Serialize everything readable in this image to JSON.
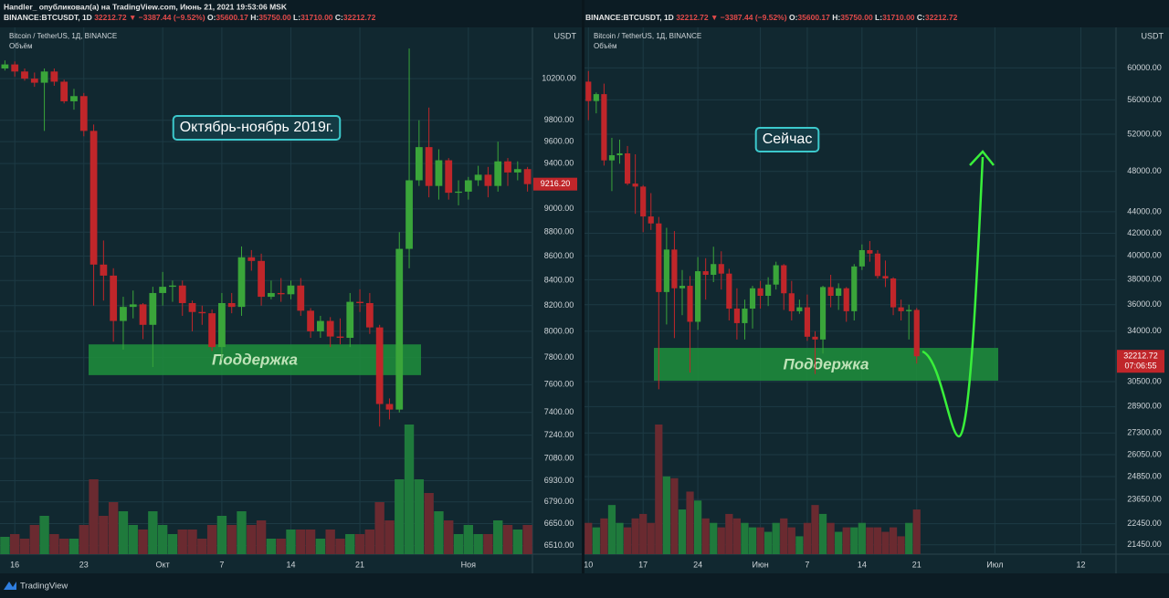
{
  "byline": "Handler_ опубликовал(а) на TradingView.com, Июнь 21, 2021 19:53:06 MSK",
  "footer": "TradingView",
  "ticker": {
    "symbol": "BINANCE:BTCUSDT, 1D",
    "price": "32212.72",
    "change": "▼ −3387.44 (−9.52%)",
    "ohlc": [
      [
        "O:",
        "35600.17"
      ],
      [
        "H:",
        "35750.00"
      ],
      [
        "L:",
        "31710.00"
      ],
      [
        "C:",
        "32212.72"
      ]
    ]
  },
  "chart_data": [
    {
      "type": "candlestick",
      "title": "Bitcoin / TetherUS, 1Д, BINANCE",
      "subtitle": "Объём",
      "axis_unit": "USDT",
      "annotation": "Октябрь-ноябрь 2019г.",
      "support_zone": {
        "label": "Поддержка",
        "low": 7670,
        "high": 7900
      },
      "last_price": {
        "value": 9216.2,
        "label": "9216.20"
      },
      "log_scale": true,
      "grid": true,
      "up_color": "#3aa53a",
      "down_color": "#c0262a",
      "volume_up_color": "#1f7a3c",
      "volume_down_color": "#6a2a30",
      "ylim": [
        6457,
        10715
      ],
      "yticks": [
        {
          "value": 10200,
          "label": "10200.00"
        },
        {
          "value": 9800,
          "label": "9800.00"
        },
        {
          "value": 9600,
          "label": "9600.00"
        },
        {
          "value": 9400,
          "label": "9400.00"
        },
        {
          "value": 9000,
          "label": "9000.00"
        },
        {
          "value": 8800,
          "label": "8800.00"
        },
        {
          "value": 8600,
          "label": "8600.00"
        },
        {
          "value": 8400,
          "label": "8400.00"
        },
        {
          "value": 8200,
          "label": "8200.00"
        },
        {
          "value": 8000,
          "label": "8000.00"
        },
        {
          "value": 7800,
          "label": "7800.00"
        },
        {
          "value": 7600,
          "label": "7600.00"
        },
        {
          "value": 7400,
          "label": "7400.00"
        },
        {
          "value": 7240,
          "label": "7240.00"
        },
        {
          "value": 7080,
          "label": "7080.00"
        },
        {
          "value": 6930,
          "label": "6930.00"
        },
        {
          "value": 6790,
          "label": "6790.00"
        },
        {
          "value": 6650,
          "label": "6650.00"
        },
        {
          "value": 6510,
          "label": "6510.00"
        }
      ],
      "categories": [
        null,
        "16",
        null,
        null,
        null,
        null,
        null,
        null,
        "23",
        null,
        null,
        null,
        null,
        null,
        null,
        null,
        "Окт",
        null,
        null,
        null,
        null,
        null,
        "7",
        null,
        null,
        null,
        null,
        null,
        null,
        "14",
        null,
        null,
        null,
        null,
        null,
        null,
        "21",
        null,
        null,
        null,
        null,
        null,
        null,
        null,
        null,
        null,
        null,
        "Ноя",
        null,
        null,
        null,
        null,
        null,
        null
      ],
      "open": [
        10300,
        10340,
        10270,
        10200,
        10160,
        10270,
        10170,
        9980,
        10030,
        9700,
        8530,
        8440,
        8080,
        8190,
        8210,
        8050,
        8300,
        8350,
        8360,
        8220,
        8150,
        8140,
        7880,
        8220,
        8190,
        8590,
        8560,
        8270,
        8300,
        8290,
        8360,
        8160,
        8000,
        8080,
        7960,
        7950,
        8230,
        8220,
        8030,
        7460,
        7420,
        8660,
        9250,
        9550,
        9200,
        9430,
        9140,
        9150,
        9250,
        9300,
        9200,
        9420,
        9320,
        9350
      ],
      "high": [
        10380,
        10370,
        10300,
        10260,
        10300,
        10300,
        10190,
        10100,
        10060,
        9760,
        8730,
        8500,
        8270,
        8320,
        8220,
        8350,
        8470,
        8400,
        8400,
        8240,
        8200,
        8170,
        8300,
        8300,
        8680,
        8650,
        8620,
        8400,
        8420,
        8400,
        8420,
        8180,
        8120,
        8110,
        8100,
        8300,
        8330,
        8300,
        8050,
        7500,
        8800,
        10500,
        9800,
        9920,
        9530,
        9450,
        9250,
        9280,
        9380,
        9370,
        9600,
        9450,
        9420,
        9370
      ],
      "low": [
        10280,
        10220,
        10180,
        10120,
        9700,
        10130,
        9960,
        9900,
        9650,
        8200,
        8240,
        7920,
        7860,
        8100,
        7940,
        7730,
        8200,
        8230,
        8120,
        8000,
        8050,
        7850,
        7780,
        8140,
        8120,
        8480,
        8200,
        8250,
        8230,
        8250,
        8120,
        7950,
        7950,
        7880,
        7900,
        7880,
        8150,
        7980,
        7300,
        7350,
        7400,
        8500,
        9200,
        9100,
        9080,
        9080,
        9030,
        9080,
        9200,
        9100,
        9150,
        9200,
        9250,
        9150
      ],
      "close": [
        10340,
        10270,
        10200,
        10160,
        10270,
        10170,
        9980,
        10030,
        9700,
        8530,
        8440,
        8080,
        8190,
        8210,
        8050,
        8300,
        8350,
        8360,
        8220,
        8150,
        8140,
        7880,
        8220,
        8190,
        8590,
        8560,
        8270,
        8300,
        8290,
        8360,
        8160,
        8000,
        8080,
        7960,
        7950,
        8230,
        8220,
        8030,
        7460,
        7420,
        8660,
        9250,
        9550,
        9200,
        9430,
        9140,
        9150,
        9250,
        9300,
        9200,
        9420,
        9320,
        9350,
        9216.2
      ],
      "volume": [
        19,
        22,
        17,
        32,
        42,
        22,
        17,
        17,
        32,
        82,
        42,
        57,
        47,
        32,
        27,
        47,
        32,
        22,
        27,
        27,
        17,
        32,
        42,
        32,
        47,
        32,
        37,
        17,
        17,
        27,
        27,
        27,
        17,
        27,
        17,
        22,
        22,
        27,
        57,
        37,
        82,
        142,
        82,
        67,
        47,
        37,
        22,
        32,
        22,
        22,
        37,
        32,
        27,
        32
      ]
    },
    {
      "type": "candlestick",
      "title": "Bitcoin / TetherUS, 1Д, BINANCE",
      "subtitle": "Объём",
      "axis_unit": "USDT",
      "annotation": "Сейчас",
      "support_zone": {
        "label": "Поддержка",
        "low": 30560,
        "high": 32800
      },
      "last_price": {
        "value": 32212.72,
        "label": "32212.72"
      },
      "countdown": "07:06:55",
      "log_scale": true,
      "grid": true,
      "up_color": "#3aa53a",
      "down_color": "#c0262a",
      "volume_up_color": "#1f7a3c",
      "volume_down_color": "#6a2a30",
      "ylim": [
        21020,
        65480
      ],
      "yticks": [
        {
          "value": 60000,
          "label": "60000.00"
        },
        {
          "value": 56000,
          "label": "56000.00"
        },
        {
          "value": 52000,
          "label": "52000.00"
        },
        {
          "value": 48000,
          "label": "48000.00"
        },
        {
          "value": 44000,
          "label": "44000.00"
        },
        {
          "value": 42000,
          "label": "42000.00"
        },
        {
          "value": 40000,
          "label": "40000.00"
        },
        {
          "value": 38000,
          "label": "38000.00"
        },
        {
          "value": 36000,
          "label": "36000.00"
        },
        {
          "value": 34000,
          "label": "34000.00"
        },
        {
          "value": 30500,
          "label": "30500.00"
        },
        {
          "value": 28900,
          "label": "28900.00"
        },
        {
          "value": 27300,
          "label": "27300.00"
        },
        {
          "value": 26050,
          "label": "26050.00"
        },
        {
          "value": 24850,
          "label": "24850.00"
        },
        {
          "value": 23650,
          "label": "23650.00"
        },
        {
          "value": 22450,
          "label": "22450.00"
        },
        {
          "value": 21450,
          "label": "21450.00"
        }
      ],
      "categories": [
        "10",
        null,
        null,
        null,
        null,
        null,
        null,
        "17",
        null,
        null,
        null,
        null,
        null,
        null,
        "24",
        null,
        null,
        null,
        null,
        null,
        null,
        null,
        "Июн",
        null,
        null,
        null,
        null,
        null,
        "7",
        null,
        null,
        null,
        null,
        null,
        null,
        "14",
        null,
        null,
        null,
        null,
        null,
        null,
        "21",
        null,
        null,
        null,
        null,
        null,
        null,
        null,
        null,
        null,
        "Июл",
        null,
        null,
        null,
        null,
        null,
        null,
        null,
        null,
        null,
        null,
        "12",
        null,
        null,
        null,
        null
      ],
      "open": [
        58250,
        55860,
        56700,
        49150,
        49700,
        49900,
        46750,
        46450,
        43550,
        42900,
        37000,
        40550,
        37300,
        37500,
        34700,
        38700,
        38400,
        39300,
        38500,
        35700,
        34600,
        35700,
        37300,
        36700,
        37600,
        39200,
        36900,
        35500,
        35800,
        33600,
        33400,
        37400,
        36700,
        37300,
        35500,
        39100,
        40500,
        40200,
        38300,
        38100,
        35800,
        35500,
        35600.17,
        null,
        null,
        null,
        null,
        null,
        null,
        null,
        null,
        null,
        null,
        null,
        null,
        null,
        null,
        null,
        null,
        null,
        null,
        null,
        null,
        null,
        null,
        null,
        null,
        null
      ],
      "high": [
        59600,
        56900,
        58000,
        51600,
        51400,
        50700,
        49800,
        46600,
        45800,
        43500,
        42500,
        42200,
        38800,
        38300,
        39900,
        39800,
        40800,
        40400,
        38900,
        37300,
        36400,
        37500,
        37900,
        38200,
        39500,
        39300,
        37900,
        36400,
        36800,
        34000,
        37500,
        38400,
        37700,
        37400,
        39300,
        41000,
        41300,
        40500,
        39600,
        38200,
        36400,
        36000,
        35750,
        null,
        null,
        null,
        null,
        null,
        null,
        null,
        null,
        null,
        null,
        null,
        null,
        null,
        null,
        null,
        null,
        null,
        null,
        null,
        null,
        null,
        null,
        null,
        null,
        null
      ],
      "low": [
        53600,
        54400,
        48600,
        46000,
        48800,
        46600,
        43800,
        42100,
        42300,
        30000,
        34500,
        33500,
        35200,
        31100,
        34100,
        36400,
        37800,
        37200,
        34800,
        33400,
        33400,
        34200,
        35700,
        35900,
        37200,
        35600,
        34800,
        35300,
        33300,
        31000,
        32400,
        35800,
        35600,
        34700,
        34800,
        38800,
        39500,
        38100,
        37400,
        35200,
        34800,
        33400,
        31710,
        null,
        null,
        null,
        null,
        null,
        null,
        null,
        null,
        null,
        null,
        null,
        null,
        null,
        null,
        null,
        null,
        null,
        null,
        null,
        null,
        null,
        null,
        null,
        null,
        null
      ],
      "close": [
        55860,
        56700,
        49150,
        49700,
        49900,
        46750,
        46450,
        43550,
        42900,
        37000,
        40550,
        37300,
        37500,
        34700,
        38700,
        38400,
        39300,
        38500,
        35700,
        34600,
        35700,
        37300,
        36700,
        37600,
        39200,
        36900,
        35500,
        35800,
        33600,
        33400,
        37400,
        36700,
        37300,
        35500,
        39100,
        40500,
        40200,
        38300,
        38100,
        35800,
        35500,
        35600,
        32212.72,
        null,
        null,
        null,
        null,
        null,
        null,
        null,
        null,
        null,
        null,
        null,
        null,
        null,
        null,
        null,
        null,
        null,
        null,
        null,
        null,
        null,
        null,
        null,
        null,
        null
      ],
      "volume": [
        35,
        30,
        40,
        55,
        35,
        30,
        40,
        45,
        35,
        145,
        87,
        85,
        50,
        70,
        60,
        40,
        35,
        30,
        45,
        40,
        35,
        30,
        30,
        25,
        35,
        40,
        30,
        20,
        35,
        55,
        45,
        35,
        25,
        30,
        30,
        35,
        30,
        30,
        25,
        30,
        20,
        35,
        50,
        null,
        null,
        null,
        null,
        null,
        null,
        null,
        null,
        null,
        null,
        null,
        null,
        null,
        null,
        null,
        null,
        null,
        null,
        null,
        null,
        null,
        null,
        null,
        null,
        null
      ]
    }
  ]
}
